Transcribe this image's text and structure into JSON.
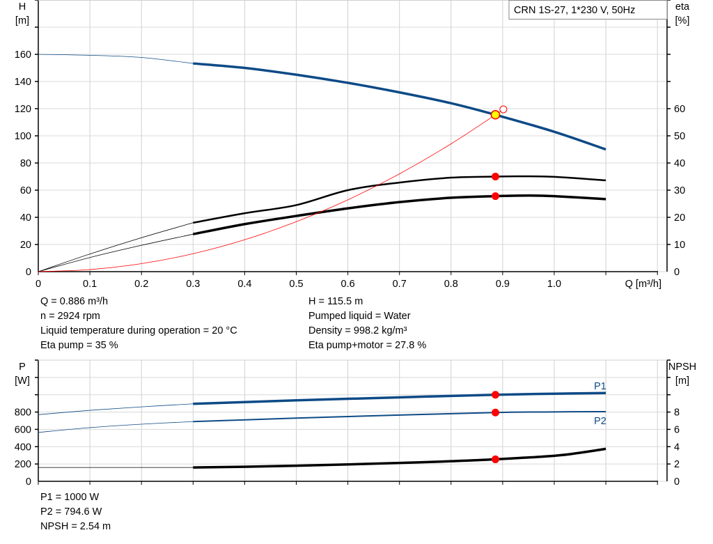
{
  "chart_data": [
    {
      "type": "line",
      "legend_box": "CRN 1S-27, 1*230 V, 50Hz",
      "xlabel": "Q [m³/h]",
      "ylabel_left": [
        "H",
        "[m]"
      ],
      "ylabel_right": [
        "eta",
        "[%]"
      ],
      "xlim": [
        0,
        1.2
      ],
      "ylim_left": [
        0,
        200
      ],
      "ylim_right": [
        0,
        100
      ],
      "grid": true,
      "x_ticks": [
        "0",
        "0.1",
        "0.2",
        "0.3",
        "0.4",
        "0.5",
        "0.6",
        "0.7",
        "0.8",
        "0.9",
        "1.0"
      ],
      "y_ticks_left": [
        "0",
        "20",
        "40",
        "60",
        "80",
        "100",
        "120",
        "140",
        "160"
      ],
      "y_ticks_right": [
        "0",
        "10",
        "20",
        "30",
        "40",
        "50",
        "60"
      ],
      "colors": {
        "head": "#0d4a86",
        "eta": "#000000",
        "system": "#ff0000",
        "duty_point": "#ffff00",
        "marker": "#ff0000"
      },
      "series": [
        {
          "key": "head",
          "axis": "left",
          "x": [
            0,
            0.1,
            0.2,
            0.3,
            0.4,
            0.5,
            0.6,
            0.7,
            0.8,
            0.886,
            1.0,
            1.1
          ],
          "y": [
            160,
            159.3,
            157.7,
            153.3,
            150,
            145,
            139,
            132,
            124,
            115.5,
            103,
            90
          ],
          "thick_from": 0.3
        },
        {
          "key": "eta_pump",
          "axis": "right",
          "x": [
            0,
            0.1,
            0.2,
            0.3,
            0.4,
            0.5,
            0.6,
            0.7,
            0.8,
            0.886,
            0.93,
            1.0,
            1.1
          ],
          "y": [
            0,
            6.5,
            12.5,
            18,
            21.5,
            24.5,
            30,
            32.8,
            34.6,
            35,
            35.1,
            34.9,
            33.6
          ],
          "thick_from": 0.3
        },
        {
          "key": "eta_pump_motor",
          "axis": "right",
          "x": [
            0,
            0.1,
            0.2,
            0.3,
            0.4,
            0.5,
            0.6,
            0.7,
            0.8,
            0.886,
            0.95,
            1.0,
            1.1
          ],
          "y": [
            0,
            5.2,
            9.7,
            13.8,
            17.5,
            20.5,
            23.3,
            25.6,
            27.2,
            27.8,
            28,
            27.8,
            26.7
          ],
          "thick_from": 0.3
        },
        {
          "key": "system",
          "axis": "left",
          "x": [
            0,
            0.1,
            0.2,
            0.3,
            0.4,
            0.5,
            0.6,
            0.7,
            0.8,
            0.886,
            0.9
          ],
          "y": [
            0,
            1.5,
            5.9,
            13.2,
            23.5,
            36.8,
            52.9,
            72,
            94.1,
            115.5,
            119
          ]
        }
      ],
      "duty_point": {
        "x": 0.886,
        "y": 115.5
      },
      "open_marker": {
        "x": 0.9,
        "y": 119
      },
      "markers": [
        {
          "x": 0.886,
          "eta": 35
        },
        {
          "x": 0.886,
          "eta": 27.8
        }
      ]
    },
    {
      "type": "line",
      "ylabel_left": [
        "P",
        "[W]"
      ],
      "ylabel_right": [
        "NPSH",
        "[m]"
      ],
      "xlim": [
        0,
        1.2
      ],
      "ylim_left": [
        0,
        1400
      ],
      "ylim_right": [
        0,
        14
      ],
      "grid": true,
      "y_ticks_left": [
        "0",
        "200",
        "400",
        "600",
        "800"
      ],
      "y_ticks_right": [
        "0",
        "2",
        "4",
        "6",
        "8"
      ],
      "colors": {
        "p1": "#0d4a86",
        "p2": "#0d4a86",
        "npsh": "#000000",
        "marker": "#ff0000"
      },
      "series": [
        {
          "key": "p1",
          "name": "P1",
          "axis": "left",
          "x": [
            0,
            0.1,
            0.2,
            0.3,
            0.5,
            0.7,
            0.886,
            1.0,
            1.1
          ],
          "y": [
            770,
            820,
            860,
            895,
            935,
            970,
            1000,
            1012,
            1020
          ],
          "thick_from": 0.3
        },
        {
          "key": "p2",
          "name": "P2",
          "axis": "left",
          "x": [
            0,
            0.1,
            0.2,
            0.3,
            0.5,
            0.7,
            0.886,
            1.0,
            1.1
          ],
          "y": [
            565,
            620,
            660,
            690,
            730,
            765,
            794.6,
            802,
            805
          ],
          "thick_from": 0.3
        },
        {
          "key": "npsh",
          "axis": "right",
          "x": [
            0,
            0.2,
            0.3,
            0.4,
            0.5,
            0.6,
            0.7,
            0.8,
            0.886,
            1.0,
            1.05,
            1.1
          ],
          "y": [
            1.6,
            1.6,
            1.6,
            1.68,
            1.8,
            1.95,
            2.12,
            2.32,
            2.54,
            2.95,
            3.3,
            3.75
          ],
          "thick_from": 0.3
        }
      ],
      "markers": [
        {
          "x": 0.886,
          "p": 1000
        },
        {
          "x": 0.886,
          "p": 794.6
        },
        {
          "x": 0.886,
          "npsh": 2.54
        }
      ]
    }
  ],
  "info_top_left": [
    "Q = 0.886 m³/h",
    "n = 2924 rpm",
    "Liquid temperature during operation = 20 °C",
    "Eta pump = 35 %"
  ],
  "info_top_right": [
    "H = 115.5 m",
    "Pumped liquid = Water",
    "Density = 998.2 kg/m³",
    "Eta pump+motor = 27.8 %"
  ],
  "info_bottom": [
    "P1 = 1000 W",
    "P2 = 794.6 W",
    "NPSH = 2.54 m"
  ]
}
